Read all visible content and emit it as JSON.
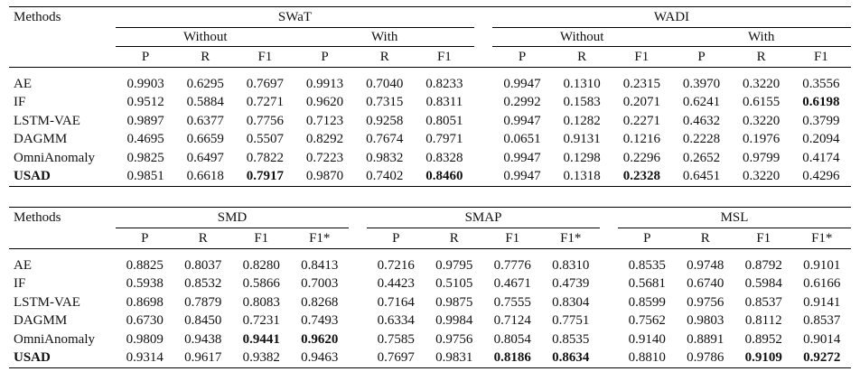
{
  "table1": {
    "methods_label": "Methods",
    "groups": [
      {
        "name": "SWaT",
        "subgroups": [
          "Without",
          "With"
        ]
      },
      {
        "name": "WADI",
        "subgroups": [
          "Without",
          "With"
        ]
      }
    ],
    "columns": [
      "P",
      "R",
      "F1",
      "P",
      "R",
      "F1",
      "P",
      "R",
      "F1",
      "P",
      "R",
      "F1"
    ],
    "rows": [
      {
        "method": "AE",
        "values": [
          "0.9903",
          "0.6295",
          "0.7697",
          "0.9913",
          "0.7040",
          "0.8233",
          "0.9947",
          "0.1310",
          "0.2315",
          "0.3970",
          "0.3220",
          "0.3556"
        ],
        "bold": []
      },
      {
        "method": "IF",
        "values": [
          "0.9512",
          "0.5884",
          "0.7271",
          "0.9620",
          "0.7315",
          "0.8311",
          "0.2992",
          "0.1583",
          "0.2071",
          "0.6241",
          "0.6155",
          "0.6198"
        ],
        "bold": [
          11
        ]
      },
      {
        "method": "LSTM-VAE",
        "values": [
          "0.9897",
          "0.6377",
          "0.7756",
          "0.7123",
          "0.9258",
          "0.8051",
          "0.9947",
          "0.1282",
          "0.2271",
          "0.4632",
          "0.3220",
          "0.3799"
        ],
        "bold": []
      },
      {
        "method": "DAGMM",
        "values": [
          "0.4695",
          "0.6659",
          "0.5507",
          "0.8292",
          "0.7674",
          "0.7971",
          "0.0651",
          "0.9131",
          "0.1216",
          "0.2228",
          "0.1976",
          "0.2094"
        ],
        "bold": []
      },
      {
        "method": "OmniAnomaly",
        "values": [
          "0.9825",
          "0.6497",
          "0.7822",
          "0.7223",
          "0.9832",
          "0.8328",
          "0.9947",
          "0.1298",
          "0.2296",
          "0.2652",
          "0.9799",
          "0.4174"
        ],
        "bold": []
      },
      {
        "method": "USAD",
        "values": [
          "0.9851",
          "0.6618",
          "0.7917",
          "0.9870",
          "0.7402",
          "0.8460",
          "0.9947",
          "0.1318",
          "0.2328",
          "0.6451",
          "0.3220",
          "0.4296"
        ],
        "bold": [
          2,
          5,
          8
        ],
        "method_bold": true
      }
    ]
  },
  "table2": {
    "methods_label": "Methods",
    "groups": [
      "SMD",
      "SMAP",
      "MSL"
    ],
    "columns": [
      "P",
      "R",
      "F1",
      "F1*",
      "P",
      "R",
      "F1",
      "F1*",
      "P",
      "R",
      "F1",
      "F1*"
    ],
    "rows": [
      {
        "method": "AE",
        "values": [
          "0.8825",
          "0.8037",
          "0.8280",
          "0.8413",
          "0.7216",
          "0.9795",
          "0.7776",
          "0.8310",
          "0.8535",
          "0.9748",
          "0.8792",
          "0.9101"
        ],
        "bold": []
      },
      {
        "method": "IF",
        "values": [
          "0.5938",
          "0.8532",
          "0.5866",
          "0.7003",
          "0.4423",
          "0.5105",
          "0.4671",
          "0.4739",
          "0.5681",
          "0.6740",
          "0.5984",
          "0.6166"
        ],
        "bold": []
      },
      {
        "method": "LSTM-VAE",
        "values": [
          "0.8698",
          "0.7879",
          "0.8083",
          "0.8268",
          "0.7164",
          "0.9875",
          "0.7555",
          "0.8304",
          "0.8599",
          "0.9756",
          "0.8537",
          "0.9141"
        ],
        "bold": []
      },
      {
        "method": "DAGMM",
        "values": [
          "0.6730",
          "0.8450",
          "0.7231",
          "0.7493",
          "0.6334",
          "0.9984",
          "0.7124",
          "0.7751",
          "0.7562",
          "0.9803",
          "0.8112",
          "0.8537"
        ],
        "bold": []
      },
      {
        "method": "OmniAnomaly",
        "values": [
          "0.9809",
          "0.9438",
          "0.9441",
          "0.9620",
          "0.7585",
          "0.9756",
          "0.8054",
          "0.8535",
          "0.9140",
          "0.8891",
          "0.8952",
          "0.9014"
        ],
        "bold": [
          2,
          3
        ]
      },
      {
        "method": "USAD",
        "values": [
          "0.9314",
          "0.9617",
          "0.9382",
          "0.9463",
          "0.7697",
          "0.9831",
          "0.8186",
          "0.8634",
          "0.8810",
          "0.9786",
          "0.9109",
          "0.9272"
        ],
        "bold": [
          6,
          7,
          10,
          11
        ],
        "method_bold": true
      }
    ]
  }
}
